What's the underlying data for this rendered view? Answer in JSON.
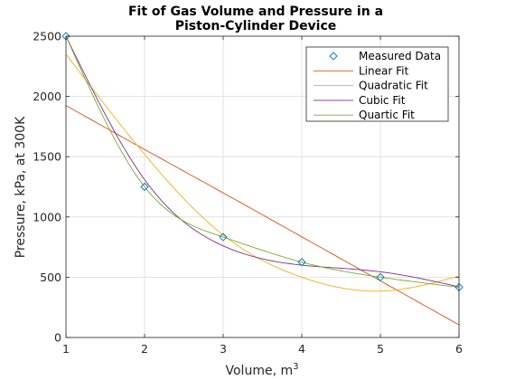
{
  "chart_data": {
    "type": "line",
    "title": "Fit of Gas Volume and Pressure in a",
    "title_line2": "Piston-Cylinder Device",
    "xlabel": "Volume, m",
    "xlabel_sup": "3",
    "ylabel": "Pressure, kPa, at 300K",
    "xlim": [
      1,
      6
    ],
    "ylim": [
      0,
      2500
    ],
    "xticks": [
      1,
      2,
      3,
      4,
      5,
      6
    ],
    "yticks": [
      0,
      500,
      1000,
      1500,
      2000,
      2500
    ],
    "grid": true,
    "legend_position": "top-right",
    "x": [
      1,
      2,
      3,
      4,
      5,
      6
    ],
    "series": [
      {
        "name": "Measured Data",
        "kind": "markers",
        "color": "#0072BD",
        "values": [
          2500,
          1250,
          833,
          625,
          500,
          417
        ]
      },
      {
        "name": "Linear Fit",
        "kind": "line",
        "color": "#D95319",
        "values": [
          1925,
          1560,
          1200,
          835,
          470,
          105
        ]
      },
      {
        "name": "Quadratic Fit",
        "kind": "line",
        "color": "#EDB120",
        "values": [
          2350,
          1520,
          850,
          500,
          385,
          510
        ]
      },
      {
        "name": "Cubic Fit",
        "kind": "line",
        "color": "#7E2F8E",
        "values": [
          2500,
          1310,
          760,
          600,
          545,
          420
        ]
      },
      {
        "name": "Quartic Fit",
        "kind": "line",
        "color": "#77AC30",
        "values": [
          2500,
          1250,
          833,
          625,
          500,
          417
        ]
      }
    ]
  }
}
